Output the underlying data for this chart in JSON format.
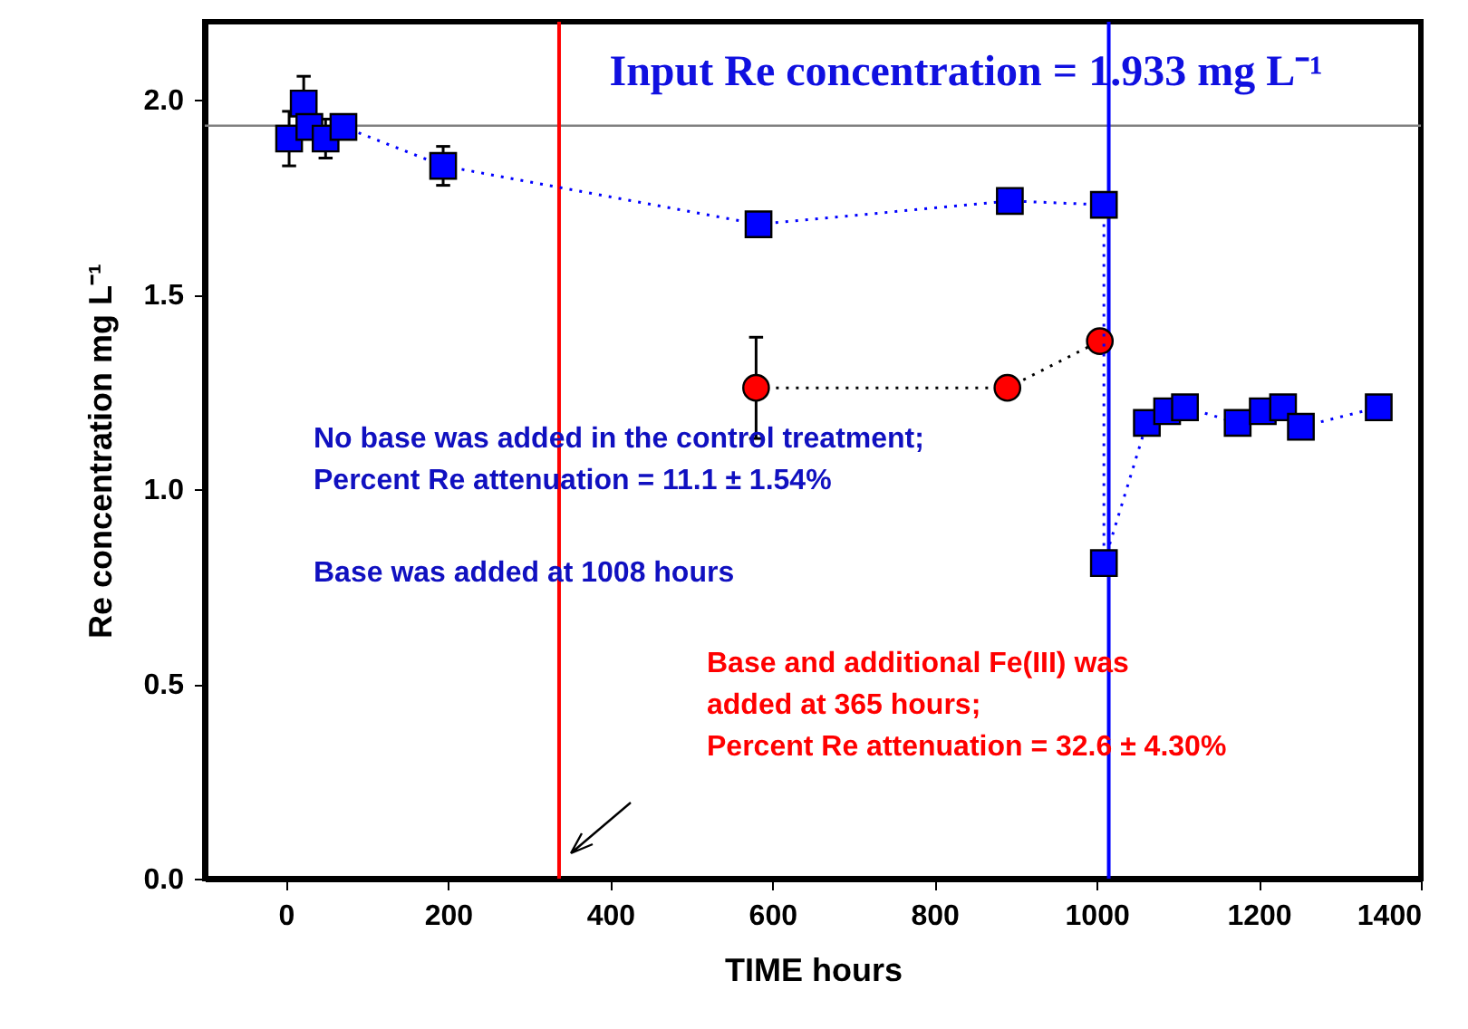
{
  "chart_data": {
    "type": "line",
    "xlabel": "TIME  hours",
    "ylabel": "Re concentration  mg L⁻¹",
    "xlim": [
      -100,
      1400
    ],
    "xticks": [
      0,
      200,
      400,
      600,
      800,
      1000,
      1200,
      1400
    ],
    "ylim": [
      0,
      2.2
    ],
    "yticks": [
      {
        "value": 0,
        "label": "0.0"
      },
      {
        "value": 0.5,
        "label": "0.5"
      },
      {
        "value": 1,
        "label": "1.0"
      },
      {
        "value": 1.5,
        "label": "1.5"
      },
      {
        "value": 2,
        "label": "2.0"
      }
    ],
    "grid": false,
    "series": [
      {
        "marker": "circle",
        "line_style": "dotted",
        "color": "#ff0000",
        "x": [
          580,
          890,
          1004
        ],
        "values": [
          1.26,
          1.26,
          1.38
        ],
        "errors": [
          0.13,
          null,
          null
        ]
      },
      {
        "marker": "square",
        "line_style": "dotted",
        "color": "#0000ff",
        "x": [
          4,
          22,
          29,
          49,
          71,
          194,
          583,
          893,
          1009,
          1009,
          1062,
          1087,
          1109,
          1174,
          1205,
          1230,
          1252,
          1348
        ],
        "values": [
          1.9,
          1.99,
          1.93,
          1.9,
          1.93,
          1.83,
          1.68,
          1.74,
          1.73,
          0.81,
          1.17,
          1.2,
          1.21,
          1.17,
          1.2,
          1.21,
          1.16,
          1.21
        ],
        "errors": [
          0.07,
          0.07,
          null,
          0.05,
          null,
          0.05,
          null,
          null,
          null,
          null,
          null,
          null,
          null,
          null,
          null,
          null,
          null,
          null
        ]
      }
    ],
    "ref_lines": [
      {
        "axis": "y",
        "value": 1.933,
        "label": "Input Re concentration = 1.933 mg L⁻¹",
        "color": "#808080"
      },
      {
        "axis": "x",
        "value": 337,
        "color": "#ff0000"
      },
      {
        "axis": "x",
        "value": 1015,
        "color": "#0000ff"
      }
    ],
    "annotations": [
      "No base was added in the control treatment;\nPercent Re attenuation = 11.1 ± 1.54%",
      "Base was added at 1008 hours",
      "Base and additional Fe(III) was\nadded at 365 hours;\nPercent Re attenuation = 32.6 ± 4.30%"
    ]
  }
}
